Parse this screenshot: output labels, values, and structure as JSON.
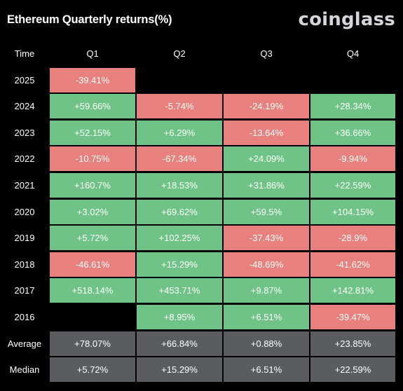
{
  "title": "Ethereum Quarterly returns(%)",
  "logo_text": "coinglass",
  "colors": {
    "positive": "#6fc387",
    "negative": "#e8807d",
    "summary": "#5b5c60",
    "background": "#000000"
  },
  "chart_data": {
    "type": "table",
    "title": "Ethereum Quarterly returns(%)",
    "row_header_label": "Time",
    "columns": [
      "Q1",
      "Q2",
      "Q3",
      "Q4"
    ],
    "rows": [
      {
        "label": "2025",
        "values": [
          "-39.41%",
          "",
          "",
          ""
        ]
      },
      {
        "label": "2024",
        "values": [
          "+59.66%",
          "-5.74%",
          "-24.19%",
          "+28.34%"
        ]
      },
      {
        "label": "2023",
        "values": [
          "+52.15%",
          "+6.29%",
          "-13.64%",
          "+36.66%"
        ]
      },
      {
        "label": "2022",
        "values": [
          "-10.75%",
          "-67.34%",
          "+24.09%",
          "-9.94%"
        ]
      },
      {
        "label": "2021",
        "values": [
          "+160.7%",
          "+18.53%",
          "+31.86%",
          "+22.59%"
        ]
      },
      {
        "label": "2020",
        "values": [
          "+3.02%",
          "+69.62%",
          "+59.5%",
          "+104.15%"
        ]
      },
      {
        "label": "2019",
        "values": [
          "+5.72%",
          "+102.25%",
          "-37.43%",
          "-28.9%"
        ]
      },
      {
        "label": "2018",
        "values": [
          "-46.61%",
          "+15.29%",
          "-48.69%",
          "-41.62%"
        ]
      },
      {
        "label": "2017",
        "values": [
          "+518.14%",
          "+453.71%",
          "+9.87%",
          "+142.81%"
        ]
      },
      {
        "label": "2016",
        "values": [
          "",
          "+8.95%",
          "+6.51%",
          "-39.47%"
        ]
      }
    ],
    "summary_rows": [
      {
        "label": "Average",
        "values": [
          "+78.07%",
          "+66.84%",
          "+0.88%",
          "+23.85%"
        ]
      },
      {
        "label": "Median",
        "values": [
          "+5.72%",
          "+15.29%",
          "+6.51%",
          "+22.59%"
        ]
      }
    ]
  }
}
